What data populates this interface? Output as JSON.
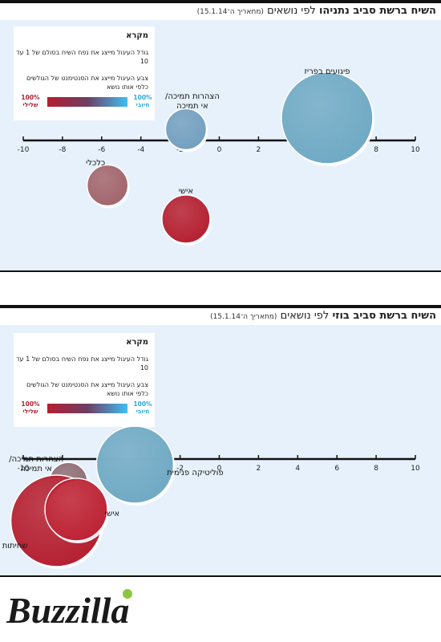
{
  "charts": [
    {
      "title_bold": "השיח ברשת סביב נתניהו",
      "title_rest": "לפי נושאים",
      "title_date": "(מתאריך ה־15.1.14)"
    },
    {
      "title_bold": "השיח ברשת סביב בוזי",
      "title_rest": "לפי נושאים",
      "title_date": "(מתאריך ה־15.1.14)"
    }
  ],
  "legend": {
    "title": "מקרא",
    "size_text": "גודל העיגול מייצג את נפח השיח בסולם של 1 עד 10",
    "color_text": "צבע העיגול מייצג את הסנטימנט של הגולשים כלפי אותו נושא",
    "positive_label": "100% חיובי",
    "negative_label": "100% שלילי",
    "positive_color": "#3ec0f2",
    "negative_color": "#b41f30"
  },
  "logo_text": "Buzzilla",
  "chart_data": [
    {
      "type": "scatter",
      "title": "השיח ברשת סביב נתניהו לפי נושאים",
      "x_ticks": [
        -10,
        -8,
        -6,
        -4,
        -2,
        0,
        2,
        4,
        6,
        8,
        10
      ],
      "xlim": [
        -10,
        10
      ],
      "ylim": [
        -1,
        1
      ],
      "points": [
        {
          "label": "פיגועים בפריז",
          "x": 5.5,
          "y": 0.2,
          "size": 5,
          "color": "#6fa9c4"
        },
        {
          "label": "הצהרות תמיכה/ אי תמיכה",
          "x": -1.7,
          "y": 0.1,
          "size": 1.5,
          "color": "#729fbf"
        },
        {
          "label": "כלכלי",
          "x": -5.7,
          "y": -0.4,
          "size": 1.5,
          "color": "#a1646c"
        },
        {
          "label": "אישי",
          "x": -1.7,
          "y": -0.7,
          "size": 2,
          "color": "#b41f30"
        }
      ]
    },
    {
      "type": "scatter",
      "title": "השיח ברשת סביב בוזי לפי נושאים",
      "x_ticks": [
        -10,
        -8,
        -6,
        -4,
        -2,
        0,
        2,
        4,
        6,
        8,
        10
      ],
      "xlim": [
        -10,
        10
      ],
      "ylim": [
        -1,
        1
      ],
      "points": [
        {
          "label": "פוליטיקה פנימית",
          "x": -4.3,
          "y": -0.05,
          "size": 4,
          "color": "#6fa9c4"
        },
        {
          "label": "הצהרות תמיכה/ אי תמיכה",
          "x": -7.7,
          "y": -0.2,
          "size": 1.3,
          "color": "#8e6d74"
        },
        {
          "label": "שחיתות",
          "x": -8.3,
          "y": -0.55,
          "size": 5,
          "color": "#b41f30"
        },
        {
          "label": "אישי",
          "x": -7.3,
          "y": -0.45,
          "size": 3,
          "color": "#bd2233"
        }
      ]
    }
  ]
}
